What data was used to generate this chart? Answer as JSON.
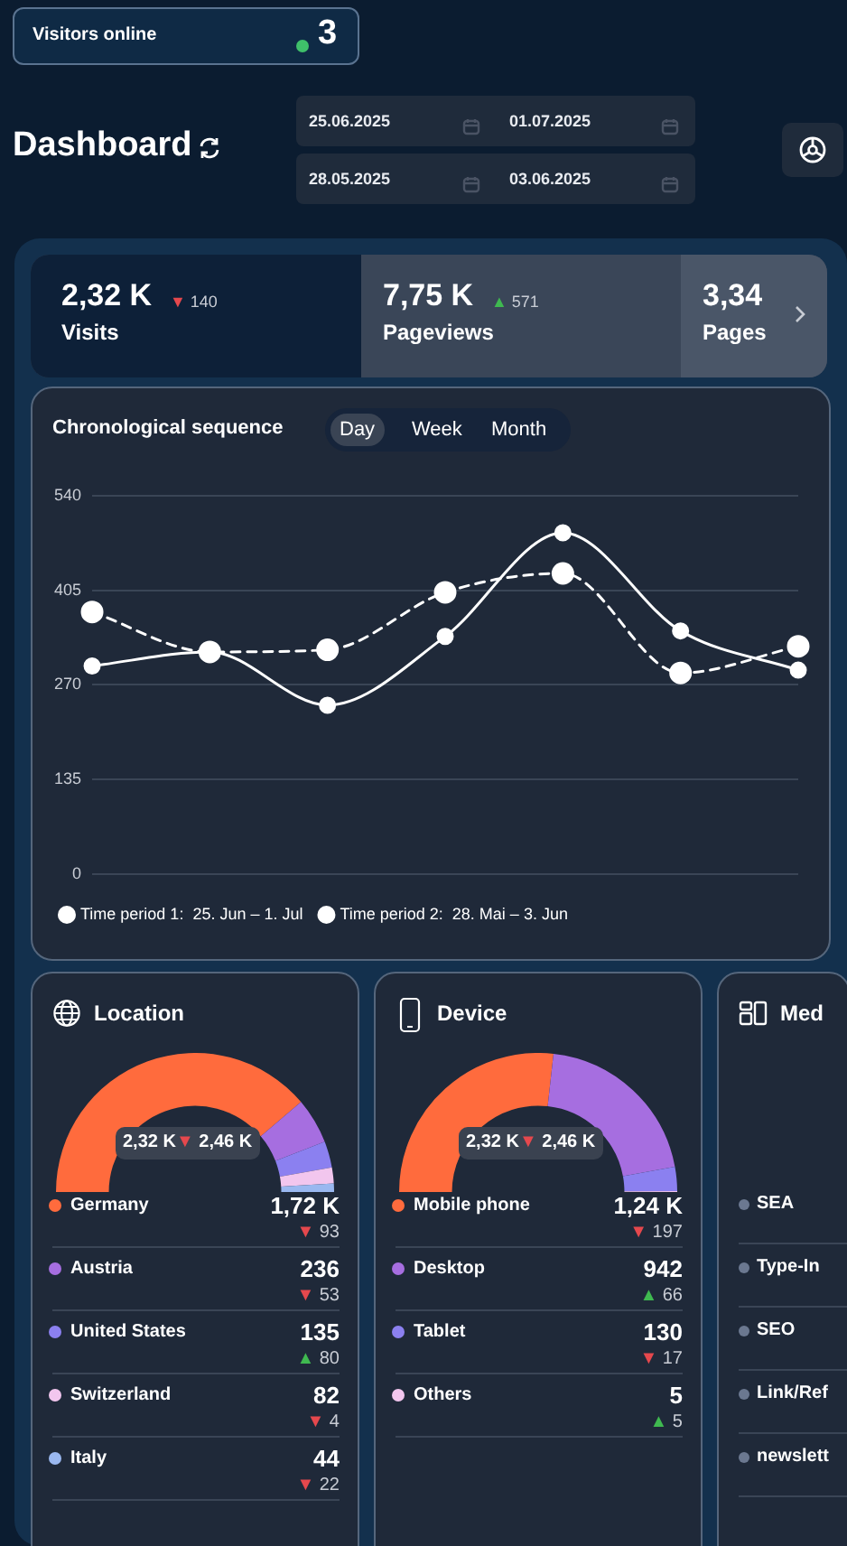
{
  "chart_data": [
    {
      "type": "other",
      "title": "Dashboard",
      "annotations": [
        "Visitors online",
        "3",
        "25.06.2025",
        "01.07.2025",
        "28.05.2025",
        "03.06.2025",
        "2,32 K",
        "▼ 140",
        "Visits",
        "7,75 K",
        "▲ 571",
        "Pageviews",
        "3,34",
        "Pages"
      ]
    },
    {
      "type": "line",
      "title": "Chronological sequence",
      "annotations": [
        "Day",
        "Week",
        "Month"
      ],
      "categories": [
        null,
        null,
        null,
        null,
        null,
        null,
        null
      ],
      "series": [
        {
          "name": "Time period 1:  25. Jun – 1. Jul",
          "color": "#ffffff",
          "line_style": "solid",
          "values": [
            297,
            317,
            241,
            339,
            487,
            347,
            291
          ]
        },
        {
          "name": "Time period 2:  28. Mai – 3. Jun",
          "color": "#ffffff",
          "line_style": "dashed",
          "values": [
            374,
            317,
            320,
            402,
            429,
            287,
            325
          ]
        }
      ],
      "ylim": [
        0,
        540
      ],
      "yticks": [
        0,
        135,
        270,
        405,
        540
      ],
      "grid": "y",
      "tick_labels": "y",
      "legend": "bottom left",
      "marker": "circle"
    },
    {
      "type": "donut",
      "title": "Location",
      "categories": [
        "Germany",
        "Austria",
        "United States",
        "Switzerland",
        "Italy"
      ],
      "values": [
        1720,
        236,
        135,
        82,
        44
      ],
      "colors": [
        "#ff6b3d",
        "#a66ee0",
        "#8b80f0",
        "#f2c6ee",
        "#9ab8f0"
      ],
      "legend": "bottom",
      "value_labels": [
        "1,72 K",
        "236",
        "135",
        "82",
        "44"
      ],
      "annotations": [
        "2,32 K",
        "▼ 2,46 K",
        {
          "text": "▼ 93",
          "x": "Germany"
        },
        {
          "text": "▼ 53",
          "x": "Austria"
        },
        {
          "text": "▲ 80",
          "x": "United States"
        },
        {
          "text": "▼ 4",
          "x": "Switzerland"
        },
        {
          "text": "▼ 22",
          "x": "Italy"
        }
      ]
    },
    {
      "type": "donut",
      "title": "Device",
      "categories": [
        "Mobile phone",
        "Desktop",
        "Tablet",
        "Others"
      ],
      "values": [
        1240,
        942,
        130,
        5
      ],
      "colors": [
        "#ff6b3d",
        "#a66ee0",
        "#8b80f0",
        "#f2c6ee"
      ],
      "legend": "bottom",
      "value_labels": [
        "1,24 K",
        "942",
        "130",
        "5"
      ],
      "annotations": [
        "2,32 K",
        "▼ 2,46 K",
        {
          "text": "▼ 197",
          "x": "Mobile phone"
        },
        {
          "text": "▲ 66",
          "x": "Desktop"
        },
        {
          "text": "▼ 17",
          "x": "Tablet"
        },
        {
          "text": "▲ 5",
          "x": "Others"
        }
      ]
    },
    {
      "type": "other",
      "title": "Med",
      "annotations": [
        "SEA",
        "Type-In",
        "SEO",
        "Link/Ref",
        "newslett"
      ]
    }
  ]
}
